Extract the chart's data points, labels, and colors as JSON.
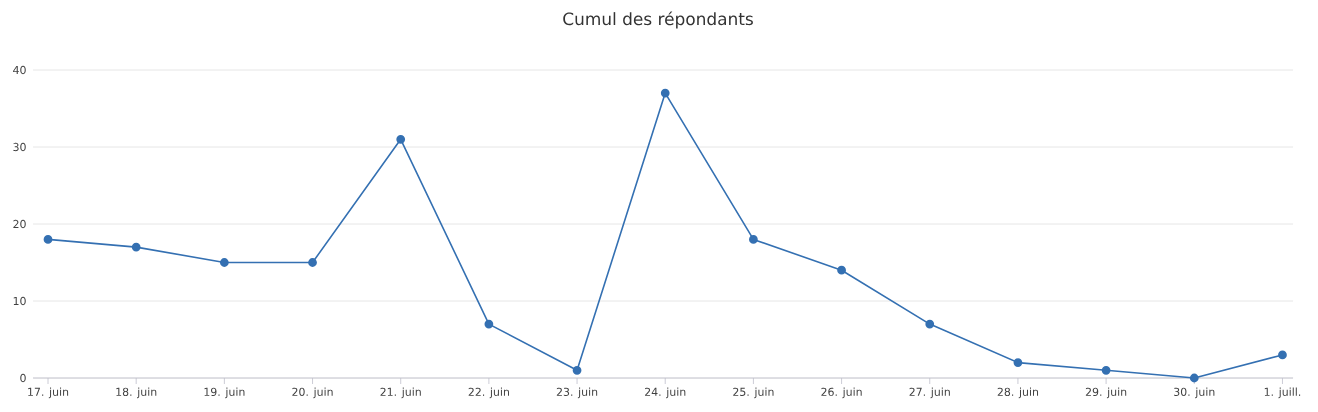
{
  "chart_data": {
    "type": "line",
    "title": "Cumul des répondants",
    "categories": [
      "17. juin",
      "18. juin",
      "19. juin",
      "20. juin",
      "21. juin",
      "22. juin",
      "23. juin",
      "24. juin",
      "25. juin",
      "26. juin",
      "27. juin",
      "28. juin",
      "29. juin",
      "30. juin",
      "1. juill."
    ],
    "series": [
      {
        "color": "#3470b2",
        "values": [
          18,
          17,
          15,
          15,
          31,
          7,
          1,
          37,
          18,
          14,
          7,
          2,
          1,
          0,
          3
        ]
      }
    ],
    "ylim": [
      0,
      40
    ],
    "yticks": [
      0,
      10,
      20,
      30,
      40
    ],
    "grid": "y",
    "legend": false,
    "marker": "circle",
    "line_style": "solid"
  }
}
